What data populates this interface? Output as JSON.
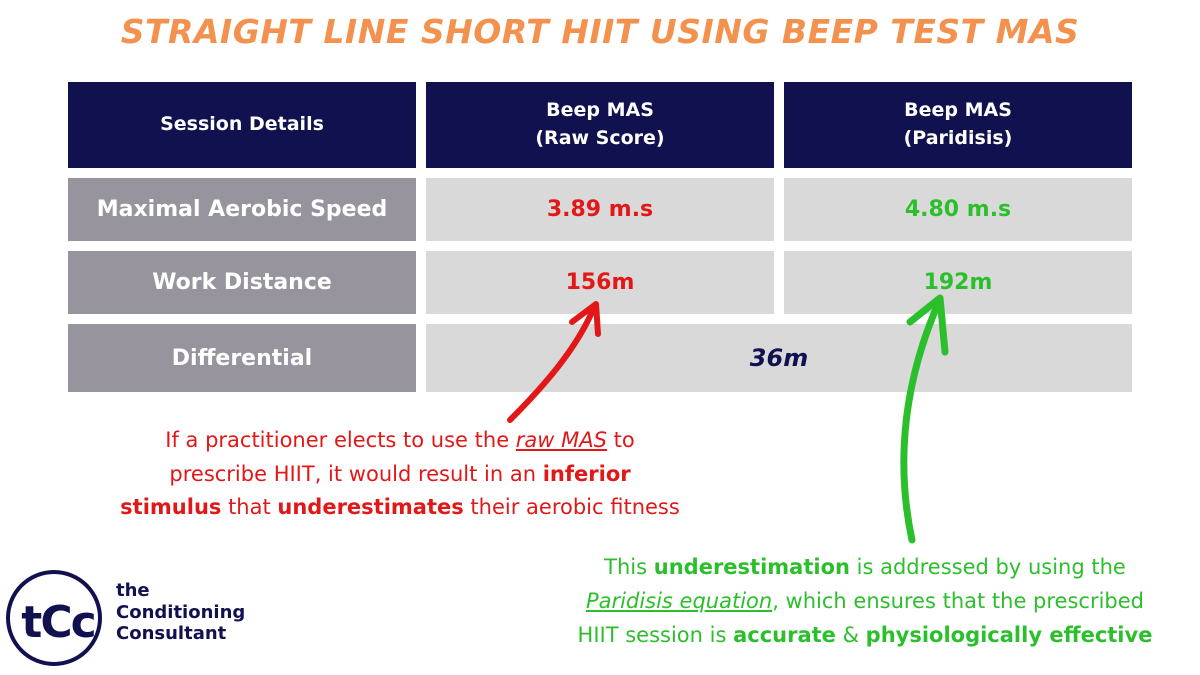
{
  "colors": {
    "title": "#f3924e",
    "header_bg": "#10114e",
    "label_bg": "#97949e",
    "value_bg": "#d9d9d9",
    "raw": "#e21818",
    "paridisis": "#2cbf2c",
    "navy": "#10114e"
  },
  "title": "STRAIGHT LINE SHORT HIIT USING BEEP TEST MAS",
  "table": {
    "headers": {
      "details": "Session Details",
      "raw_line1": "Beep MAS",
      "raw_line2": "(Raw Score)",
      "par_line1": "Beep MAS",
      "par_line2": "(Paridisis)"
    },
    "rows": {
      "mas": {
        "label": "Maximal Aerobic Speed",
        "raw": "3.89 m.s",
        "paridisis": "4.80 m.s"
      },
      "distance": {
        "label": "Work Distance",
        "raw": "156m",
        "paridisis": "192m"
      },
      "differential": {
        "label": "Differential",
        "value": "36m"
      }
    }
  },
  "notes": {
    "raw": {
      "t1": "If a practitioner elects to use the ",
      "t2": "raw MAS",
      "t3": " to",
      "t4": "prescribe HIIT, it would result in an ",
      "t5": "inferior",
      "t6": "stimulus",
      "t7": " that ",
      "t8": "underestimates",
      "t9": " their aerobic fitness"
    },
    "paridisis": {
      "t1": "This ",
      "t2": "underestimation",
      "t3": " is addressed by using the",
      "t4": "Paridisis equation",
      "t5": ", which ensures that the prescribed",
      "t6": "HIIT session is ",
      "t7": "accurate",
      "t8": " & ",
      "t9": "physiologically effective"
    }
  },
  "logo": {
    "letters": "tCc",
    "line1": "the",
    "line2": "Conditioning",
    "line3": "Consultant"
  }
}
